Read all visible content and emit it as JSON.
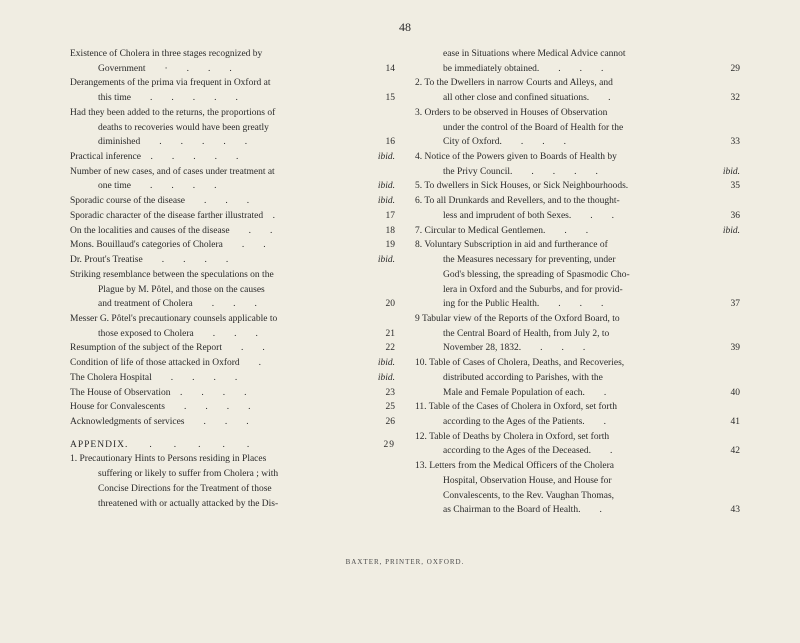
{
  "pageNumber": "48",
  "leftColumn": [
    {
      "text": "Existence of Cholera in three stages recognized by",
      "page": "",
      "cls": "indent"
    },
    {
      "text": "Government  ·  .  .  .",
      "page": "14",
      "cls": "indent2",
      "num": true
    },
    {
      "text": "Derangements of the prima via frequent in Oxford at",
      "page": "",
      "cls": "indent"
    },
    {
      "text": "this time  .  .  .  .  .",
      "page": "15",
      "cls": "indent2",
      "num": true
    },
    {
      "text": "Had they been added to the returns, the proportions of",
      "page": "",
      "cls": "indent"
    },
    {
      "text": "deaths to recoveries would have been greatly",
      "page": "",
      "cls": "indent2"
    },
    {
      "text": "diminished  .  .  .  .  .",
      "page": "16",
      "cls": "indent2",
      "num": true
    },
    {
      "text": "Practical inference .  .  .  .  .",
      "page": "ibid.",
      "cls": "indent"
    },
    {
      "text": "Number of new cases, and of cases under treatment at",
      "page": "",
      "cls": "indent"
    },
    {
      "text": "one time  .  .  .  .",
      "page": "ibid.",
      "cls": "indent2"
    },
    {
      "text": "Sporadic course of the disease  .  .  .",
      "page": "ibid.",
      "cls": "indent"
    },
    {
      "text": "Sporadic character of the disease farther illustrated .",
      "page": "17",
      "cls": "indent",
      "num": true
    },
    {
      "text": "On the localities and causes of the disease  .  .",
      "page": "18",
      "cls": "indent",
      "num": true
    },
    {
      "text": "Mons. Bouillaud's categories of Cholera  .  .",
      "page": "19",
      "cls": "indent",
      "num": true
    },
    {
      "text": "Dr. Prout's Treatise  .  .  .  .",
      "page": "ibid.",
      "cls": "indent"
    },
    {
      "text": "Striking resemblance between the speculations on the",
      "page": "",
      "cls": "indent"
    },
    {
      "text": "Plague by M. Pôtel, and those on the causes",
      "page": "",
      "cls": "indent2"
    },
    {
      "text": "and treatment of Cholera  .  .  .",
      "page": "20",
      "cls": "indent2",
      "num": true
    },
    {
      "text": "Messer G. Pôtel's precautionary counsels applicable to",
      "page": "",
      "cls": "indent"
    },
    {
      "text": "those exposed to Cholera  .  .  .",
      "page": "21",
      "cls": "indent2",
      "num": true
    },
    {
      "text": "Resumption of the subject of the Report  .  .",
      "page": "22",
      "cls": "indent",
      "num": true
    },
    {
      "text": "Condition of life of those attacked in Oxford  .",
      "page": "ibid.",
      "cls": "indent"
    },
    {
      "text": "The Cholera Hospital  .  .  .  .",
      "page": "ibid.",
      "cls": "indent"
    },
    {
      "text": "The House of Observation .  .  .  .",
      "page": "23",
      "cls": "indent",
      "num": true
    },
    {
      "text": "House for Convalescents  .  .  .  .",
      "page": "25",
      "cls": "indent",
      "num": true
    },
    {
      "text": "Acknowledgments of services  .  .  .",
      "page": "26",
      "cls": "indent",
      "num": true
    }
  ],
  "appendixTitle": "APPENDIX.  .  .  .  .  .",
  "appendixPage": "29",
  "appendixEntries": [
    {
      "text": "1. Precautionary Hints to Persons residing in Places",
      "page": "",
      "cls": "indent"
    },
    {
      "text": "suffering or likely to suffer from Cholera ; with",
      "page": "",
      "cls": "indent2"
    },
    {
      "text": "Concise Directions for the Treatment of those",
      "page": "",
      "cls": "indent2"
    },
    {
      "text": "threatened with or actually attacked by the Dis-",
      "page": "",
      "cls": "indent2"
    }
  ],
  "rightColumn": [
    {
      "text": "ease in Situations where Medical Advice cannot",
      "page": "",
      "cls": "indent2"
    },
    {
      "text": "be immediately obtained.  .  .  .",
      "page": "29",
      "cls": "indent2",
      "num": true
    },
    {
      "text": "2. To the Dwellers in narrow Courts and Alleys, and",
      "page": "",
      "cls": "indent"
    },
    {
      "text": "all other close and confined situations.  .",
      "page": "32",
      "cls": "indent2",
      "num": true
    },
    {
      "text": "3. Orders to be observed in Houses of Observation",
      "page": "",
      "cls": "indent"
    },
    {
      "text": "under the control of the Board of Health for the",
      "page": "",
      "cls": "indent2"
    },
    {
      "text": "City of Oxford.  .  .  .",
      "page": "33",
      "cls": "indent2",
      "num": true
    },
    {
      "text": "4. Notice of the Powers given to Boards of Health by",
      "page": "",
      "cls": "indent"
    },
    {
      "text": "the Privy Council.  .  .  .  .",
      "page": "ibid.",
      "cls": "indent2"
    },
    {
      "text": "5. To dwellers in Sick Houses, or Sick Neighbourhoods.",
      "page": "35",
      "cls": "indent",
      "num": true
    },
    {
      "text": "6. To all Drunkards and Revellers, and to the thought-",
      "page": "",
      "cls": "indent"
    },
    {
      "text": "less and imprudent of both Sexes.  .  .",
      "page": "36",
      "cls": "indent2",
      "num": true
    },
    {
      "text": "7. Circular to Medical Gentlemen.  .  .",
      "page": "ibid.",
      "cls": "indent"
    },
    {
      "text": "8. Voluntary Subscription in aid and furtherance of",
      "page": "",
      "cls": "indent"
    },
    {
      "text": "the Measures necessary for preventing, under",
      "page": "",
      "cls": "indent2"
    },
    {
      "text": "God's blessing, the spreading of Spasmodic Cho-",
      "page": "",
      "cls": "indent2"
    },
    {
      "text": "lera in Oxford and the Suburbs, and for provid-",
      "page": "",
      "cls": "indent2"
    },
    {
      "text": "ing for the Public Health.  .  .  .",
      "page": "37",
      "cls": "indent2",
      "num": true
    },
    {
      "text": "9 Tabular view of the Reports of the Oxford Board, to",
      "page": "",
      "cls": "indent"
    },
    {
      "text": "the Central Board of Health, from July 2, to",
      "page": "",
      "cls": "indent2"
    },
    {
      "text": "November 28, 1832.  .  .  .",
      "page": "39",
      "cls": "indent2",
      "num": true
    },
    {
      "text": "10. Table of Cases of Cholera, Deaths, and Recoveries,",
      "page": "",
      "cls": "indent"
    },
    {
      "text": "distributed according to Parishes, with the",
      "page": "",
      "cls": "indent2"
    },
    {
      "text": "Male and Female Population of each.  .",
      "page": "40",
      "cls": "indent2",
      "num": true
    },
    {
      "text": "11. Table of the Cases of Cholera in Oxford, set forth",
      "page": "",
      "cls": "indent"
    },
    {
      "text": "according to the Ages of the Patients.  .",
      "page": "41",
      "cls": "indent2",
      "num": true
    },
    {
      "text": "12. Table of Deaths by Cholera in Oxford, set forth",
      "page": "",
      "cls": "indent"
    },
    {
      "text": "according to the Ages of the Deceased.  .",
      "page": "42",
      "cls": "indent2",
      "num": true
    },
    {
      "text": "13. Letters from the Medical Officers of the Cholera",
      "page": "",
      "cls": "indent"
    },
    {
      "text": "Hospital, Observation House, and House for",
      "page": "",
      "cls": "indent2"
    },
    {
      "text": "Convalescents, to the Rev. Vaughan Thomas,",
      "page": "",
      "cls": "indent2"
    },
    {
      "text": "as Chairman to the Board of Health.  .",
      "page": "43",
      "cls": "indent2",
      "num": true
    }
  ],
  "footer": "BAXTER, PRINTER, OXFORD."
}
